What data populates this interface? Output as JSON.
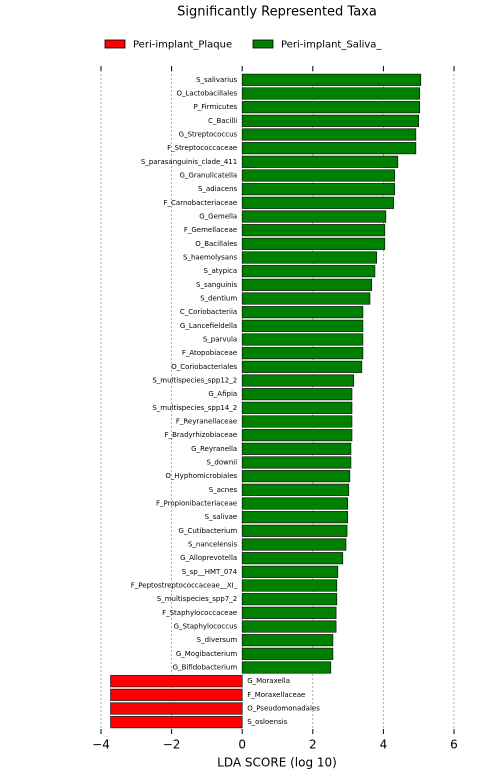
{
  "chart_data": {
    "type": "bar",
    "orientation": "horizontal",
    "title": "Significantly Represented Taxa",
    "xlabel": "LDA SCORE (log 10)",
    "categories": [
      "S_salivarius",
      "O_Lactobacillales",
      "P_Firmicutes",
      "C_Bacilli",
      "G_Streptococcus",
      "F_Streptococcaceae",
      "S_parasanguinis_clade_411",
      "G_Granulicatella",
      "S_adiacens",
      "F_Carnobacteriaceae",
      "G_Gemella",
      "F_Gemellaceae",
      "O_Bacillales",
      "S_haemolysans",
      "S_atypica",
      "S_sanguinis",
      "S_dentium",
      "C_Coriobacteriia",
      "G_Lancefieldella",
      "S_parvula",
      "F_Atopobiaceae",
      "O_Coriobacteriales",
      "S_multispecies_spp12_2",
      "G_Afipia",
      "S_multispecies_spp14_2",
      "F_Reyranellaceae",
      "F_Bradyrhizobiaceae",
      "G_Reyranella",
      "S_downii",
      "O_Hyphomicrobiales",
      "S_acnes",
      "F_Propionibacteriaceae",
      "S_salivae",
      "G_Cutibacterium",
      "S_nancelensis",
      "G_Alloprevotella",
      "S_sp__HMT_074",
      "F_Peptostreptococcaceae__XI_",
      "S_multispecies_spp7_2",
      "F_Staphylococcaceae",
      "G_Staphylococcus",
      "S_diversum",
      "G_Mogibacterium",
      "G_Bifidobacterium",
      "G_Moraxella",
      "F_Moraxellaceae",
      "O_Pseudomonadales",
      "S_osloensis"
    ],
    "series": [
      {
        "name": "Peri-implant_Plaque",
        "color": "#ff0000",
        "values": [
          null,
          null,
          null,
          null,
          null,
          null,
          null,
          null,
          null,
          null,
          null,
          null,
          null,
          null,
          null,
          null,
          null,
          null,
          null,
          null,
          null,
          null,
          null,
          null,
          null,
          null,
          null,
          null,
          null,
          null,
          null,
          null,
          null,
          null,
          null,
          null,
          null,
          null,
          null,
          null,
          null,
          null,
          null,
          null,
          -3.73,
          -3.73,
          -3.73,
          -3.73
        ]
      },
      {
        "name": "Peri-implant_Saliva_",
        "color": "#008000",
        "values": [
          5.06,
          5.03,
          5.03,
          5.0,
          4.92,
          4.92,
          4.41,
          4.32,
          4.32,
          4.29,
          4.07,
          4.04,
          4.04,
          3.81,
          3.76,
          3.67,
          3.62,
          3.42,
          3.42,
          3.42,
          3.42,
          3.39,
          3.16,
          3.11,
          3.11,
          3.11,
          3.11,
          3.08,
          3.08,
          3.05,
          3.02,
          2.99,
          2.99,
          2.97,
          2.94,
          2.85,
          2.71,
          2.68,
          2.68,
          2.66,
          2.66,
          2.57,
          2.57,
          2.51,
          null,
          null,
          null,
          null
        ]
      }
    ],
    "xlim": [
      -4,
      6
    ],
    "xticks": [
      {
        "value": -4,
        "label": "−4"
      },
      {
        "value": -2,
        "label": "−2"
      },
      0,
      2,
      4,
      6
    ],
    "grid": true
  }
}
